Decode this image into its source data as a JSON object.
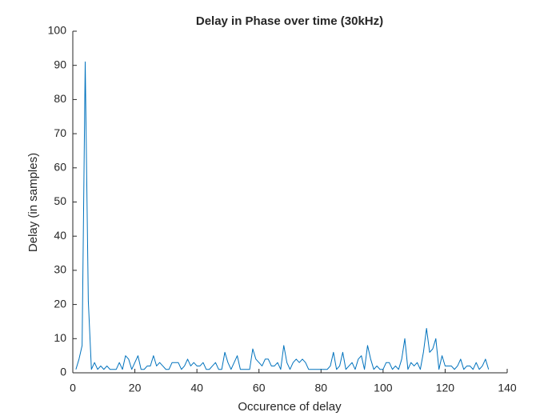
{
  "chart_data": {
    "type": "line",
    "title": "Delay in Phase over time (30kHz)",
    "x_label": "Occurence of delay",
    "y_label": "Delay (in samples)",
    "x": [
      1,
      2,
      3,
      4,
      5,
      6,
      7,
      8,
      9,
      10,
      11,
      12,
      13,
      14,
      15,
      16,
      17,
      18,
      19,
      20,
      21,
      22,
      23,
      24,
      25,
      26,
      27,
      28,
      29,
      30,
      31,
      32,
      33,
      34,
      35,
      36,
      37,
      38,
      39,
      40,
      41,
      42,
      43,
      44,
      45,
      46,
      47,
      48,
      49,
      50,
      51,
      52,
      53,
      54,
      55,
      56,
      57,
      58,
      59,
      60,
      61,
      62,
      63,
      64,
      65,
      66,
      67,
      68,
      69,
      70,
      71,
      72,
      73,
      74,
      75,
      76,
      77,
      78,
      79,
      80,
      81,
      82,
      83,
      84,
      85,
      86,
      87,
      88,
      89,
      90,
      91,
      92,
      93,
      94,
      95,
      96,
      97,
      98,
      99,
      100,
      101,
      102,
      103,
      104,
      105,
      106,
      107,
      108,
      109,
      110,
      111,
      112,
      113,
      114,
      115,
      116,
      117,
      118,
      119,
      120,
      121,
      122,
      123,
      124,
      125,
      126,
      127,
      128,
      129,
      130,
      131,
      132,
      133,
      134
    ],
    "values": [
      1,
      4,
      8,
      91,
      21,
      1,
      3,
      1,
      2,
      1,
      2,
      1,
      1,
      1,
      3,
      1,
      5,
      4,
      1,
      3,
      5,
      1,
      1,
      2,
      2,
      5,
      2,
      3,
      2,
      1,
      1,
      3,
      3,
      3,
      1,
      2,
      4,
      2,
      3,
      2,
      2,
      3,
      1,
      1,
      2,
      3,
      1,
      1,
      6,
      3,
      1,
      3,
      5,
      1,
      1,
      1,
      1,
      7,
      4,
      3,
      2,
      4,
      4,
      2,
      2,
      3,
      1,
      8,
      3,
      1,
      3,
      4,
      3,
      4,
      3,
      1,
      1,
      1,
      1,
      1,
      1,
      1,
      2,
      6,
      1,
      2,
      6,
      1,
      2,
      3,
      1,
      4,
      5,
      1,
      8,
      4,
      1,
      2,
      1,
      1,
      3,
      3,
      1,
      2,
      1,
      4,
      10,
      1,
      3,
      2,
      3,
      1,
      6,
      13,
      6,
      7,
      10,
      1,
      5,
      2,
      2,
      2,
      1,
      2,
      4,
      1,
      2,
      2,
      1,
      3,
      1,
      2,
      4,
      1
    ],
    "color": "#0072bd",
    "xlim": [
      0,
      140
    ],
    "xticks": [
      0,
      20,
      40,
      60,
      80,
      100,
      120,
      140
    ],
    "ylim": [
      0,
      100
    ],
    "yticks": [
      0,
      10,
      20,
      30,
      40,
      50,
      60,
      70,
      80,
      90,
      100
    ]
  }
}
